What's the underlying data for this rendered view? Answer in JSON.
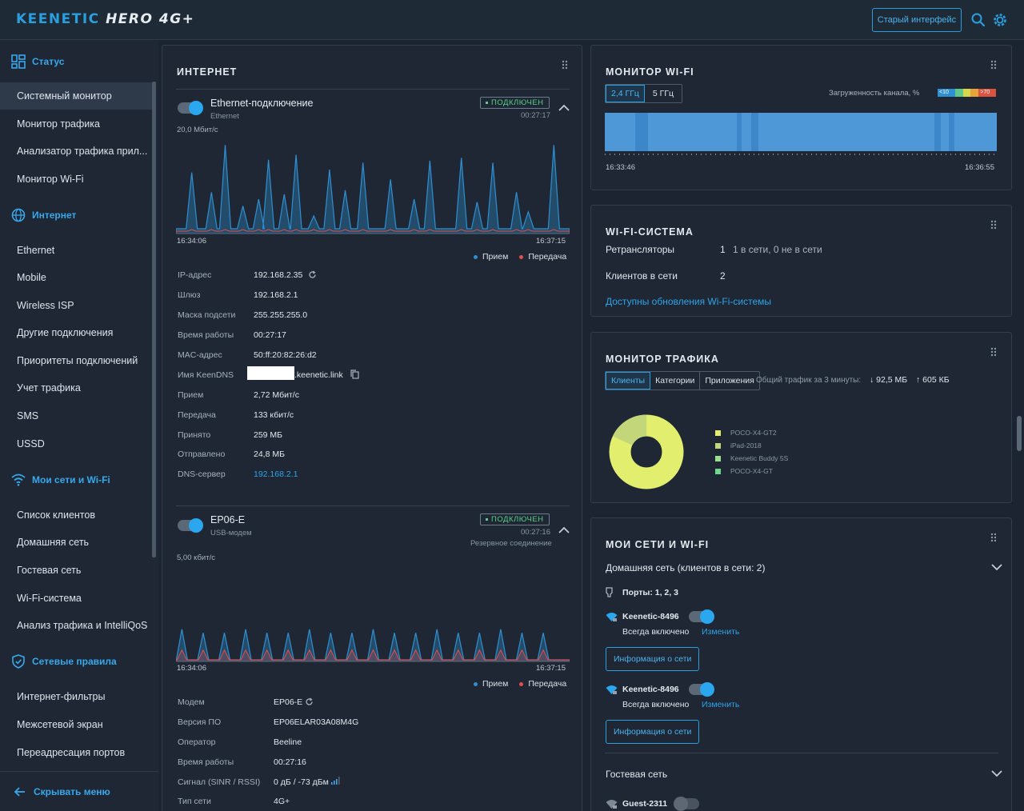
{
  "header": {
    "brand": "KEENETIC",
    "model": "HERO 4G+",
    "old_ui_label": "Старый интерфейс"
  },
  "sidebar": {
    "sections": [
      {
        "title": "Статус",
        "icon": "dashboard-icon",
        "items": [
          "Системный монитор",
          "Монитор трафика",
          "Анализатор трафика прил...",
          "Монитор Wi-Fi"
        ]
      },
      {
        "title": "Интернет",
        "icon": "globe-icon",
        "items": [
          "Ethernet",
          "Mobile",
          "Wireless ISP",
          "Другие подключения",
          "Приоритеты подключений",
          "Учет трафика",
          "SMS",
          "USSD"
        ]
      },
      {
        "title": "Мои сети и Wi-Fi",
        "icon": "wifi-icon",
        "items": [
          "Список клиентов",
          "Домашняя сеть",
          "Гостевая сеть",
          "Wi-Fi-система",
          "Анализ трафика и IntelliQoS"
        ]
      },
      {
        "title": "Сетевые правила",
        "icon": "shield-icon",
        "items": [
          "Интернет-фильтры",
          "Межсетевой экран",
          "Переадресация портов"
        ]
      }
    ],
    "hide_menu": "Скрывать меню"
  },
  "internet": {
    "title": "ИНТЕРНЕТ",
    "legend_rx": "Прием",
    "legend_tx": "Передача",
    "eth": {
      "name": "Ethernet-подключение",
      "type": "Ethernet",
      "status": "ПОДКЛЮЧЕН",
      "uptime": "00:27:17",
      "scale": "20,0 Мбит/с",
      "t_start": "16:34:06",
      "t_end": "16:37:15",
      "rows": [
        {
          "label": "IP-адрес",
          "value": "192.168.2.35"
        },
        {
          "label": "Шлюз",
          "value": "192.168.2.1"
        },
        {
          "label": "Маска подсети",
          "value": "255.255.255.0"
        },
        {
          "label": "Время работы",
          "value": "00:27:17"
        },
        {
          "label": "MAC-адрес",
          "value": "50:ff:20:82:26:d2"
        },
        {
          "label": "Имя KeenDNS",
          "value": ".keenetic.link"
        },
        {
          "label": "Прием",
          "value": "2,72 Мбит/с"
        },
        {
          "label": "Передача",
          "value": "133 кбит/с"
        },
        {
          "label": "Принято",
          "value": "259 МБ"
        },
        {
          "label": "Отправлено",
          "value": "24,8 МБ"
        },
        {
          "label": "DNS-сервер",
          "value": "192.168.2.1"
        }
      ]
    },
    "usb": {
      "name": "EP06-E",
      "type": "USB-модем",
      "status": "ПОДКЛЮЧЕН",
      "uptime": "00:27:16",
      "backup": "Резервное соединение",
      "scale": "5,00 кбит/с",
      "t_start": "16:34:06",
      "t_end": "16:37:15",
      "rows": [
        {
          "label": "Модем",
          "value": "EP06-E"
        },
        {
          "label": "Версия ПО",
          "value": "EP06ELAR03A08M4G"
        },
        {
          "label": "Оператор",
          "value": "Beeline"
        },
        {
          "label": "Время работы",
          "value": "00:27:16"
        },
        {
          "label": "Сигнал (SINR / RSSI)",
          "value": "0 дБ / -73 дБм"
        },
        {
          "label": "Тип сети",
          "value": "4G+"
        }
      ]
    }
  },
  "wifi_monitor": {
    "title": "МОНИТОР WI-FI",
    "tabs": [
      "2,4 ГГц",
      "5 ГГц"
    ],
    "load_label": "Загруженность канала, %",
    "scale_low": "<10",
    "scale_high": ">70",
    "t_start": "16:33:46",
    "t_end": "16:36:55"
  },
  "wifi_system": {
    "title": "WI-FI-СИСТЕМА",
    "repeaters_label": "Ретрансляторы",
    "repeaters_count": "1",
    "repeaters_status": "1 в сети, 0 не в сети",
    "clients_label": "Клиентов в сети",
    "clients_count": "2",
    "update_link": "Доступны обновления Wi-Fi-системы"
  },
  "traffic_monitor": {
    "title": "МОНИТОР ТРАФИКА",
    "tabs": [
      "Клиенты",
      "Категории",
      "Приложения"
    ],
    "summary_label": "Общий трафик за 3 минуты:",
    "down": "92,5 МБ",
    "up": "605 КБ",
    "clients": [
      {
        "name": "POCO-X4-GT2",
        "color": "#e2ee6e"
      },
      {
        "name": "iPad-2018",
        "color": "#c3d67a"
      },
      {
        "name": "Keenetic Buddy 5S",
        "color": "#9be08a"
      },
      {
        "name": "POCO-X4-GT",
        "color": "#6dd889"
      }
    ],
    "pie_share": [
      0.82,
      0.18
    ]
  },
  "my_networks": {
    "title": "МОИ СЕТИ И WI-FI",
    "home_title": "Домашняя сеть (клиентов в сети: 2)",
    "ports_label": "Порты: 1, 2, 3",
    "ssid1": "Keenetic-8496",
    "ssid1_mode": "Всегда включено",
    "ssid2": "Keenetic-8496",
    "ssid2_mode": "Всегда включено",
    "edit_label": "Изменить",
    "info_button": "Информация о сети",
    "guest_title": "Гостевая сеть",
    "guest_ssid": "Guest-2311"
  },
  "colors": {
    "accent": "#2a9fe0",
    "rx": "#2f8fd1",
    "tx": "#e0504c",
    "ok": "#5bcf8a"
  }
}
